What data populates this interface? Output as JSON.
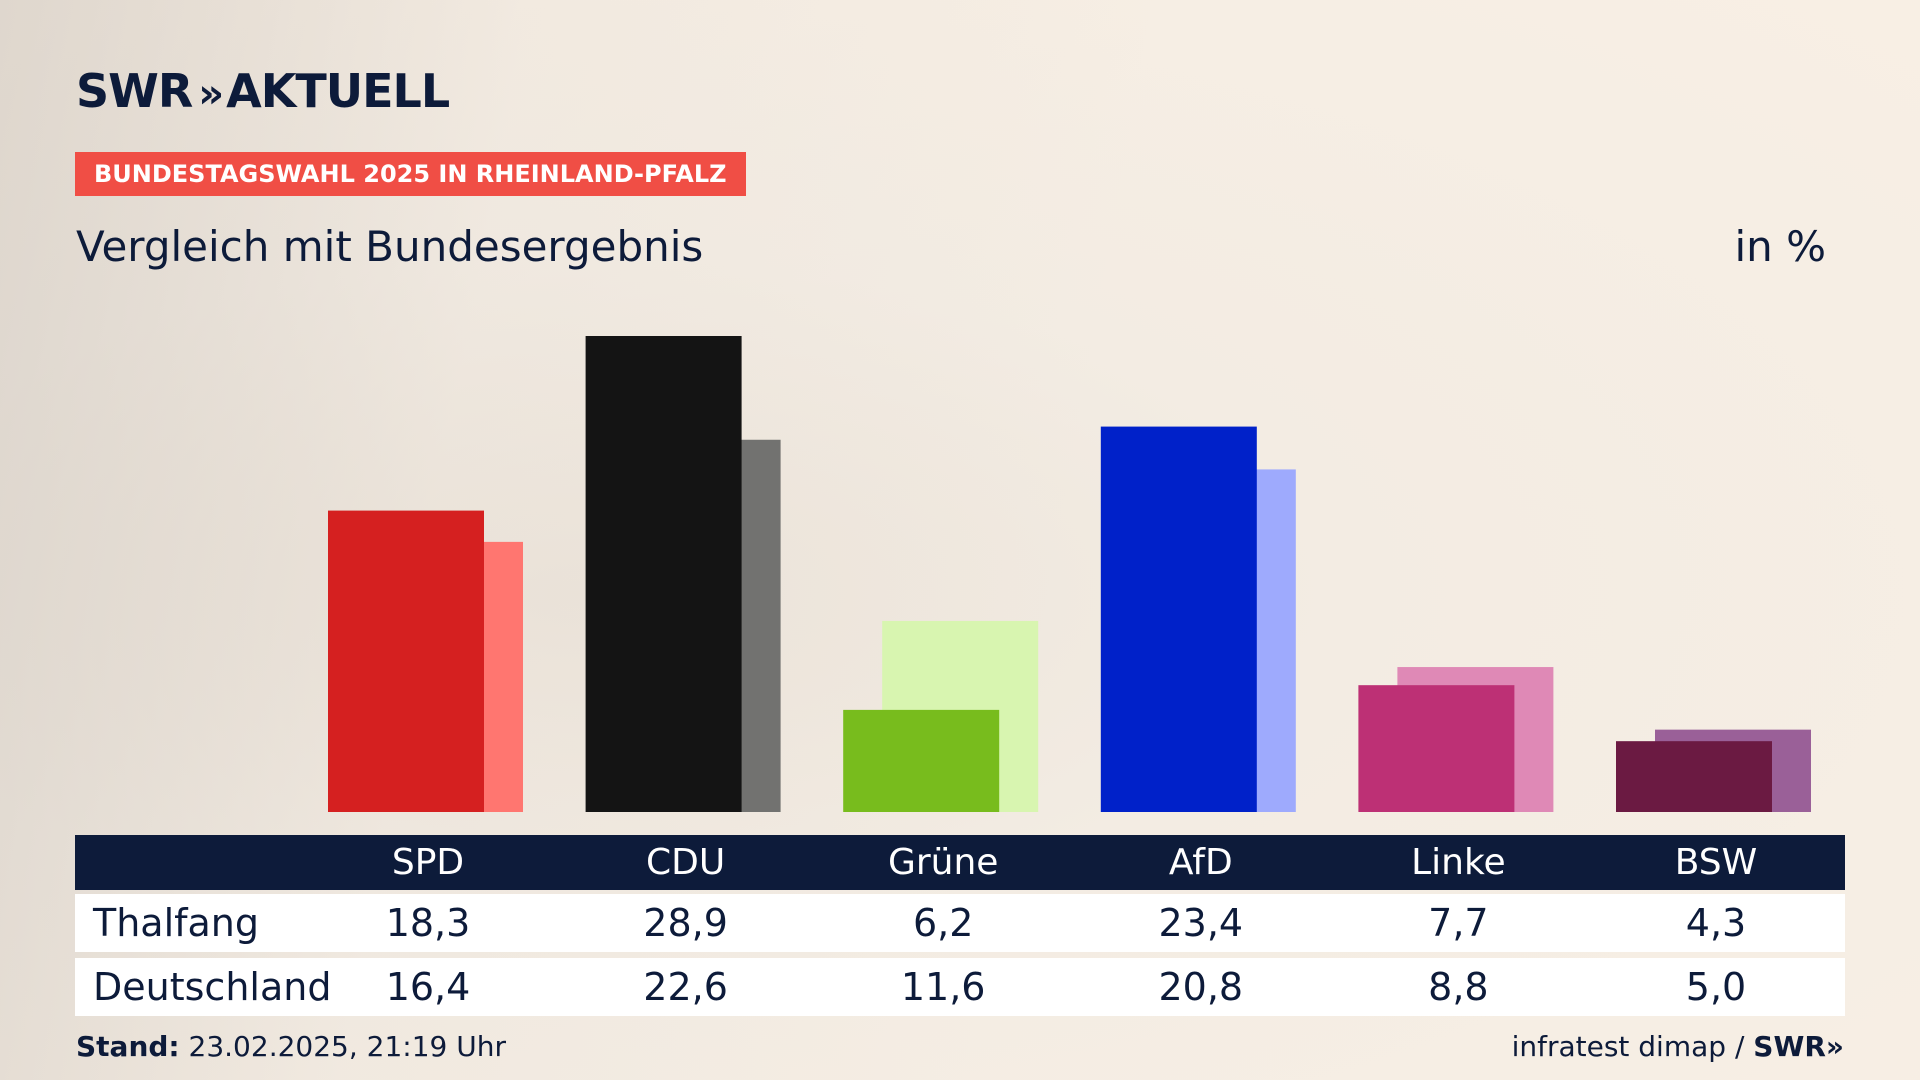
{
  "header": {
    "logo_text": "SWR",
    "logo_chevrons": "»",
    "logo_suffix": "AKTUELL",
    "badge": "BUNDESTAGSWAHL 2025 IN RHEINLAND-PFALZ",
    "subtitle": "Vergleich mit Bundesergebnis",
    "unit": "in %"
  },
  "chart_data": {
    "type": "bar",
    "categories": [
      "SPD",
      "CDU",
      "Grüne",
      "AfD",
      "Linke",
      "BSW"
    ],
    "series": [
      {
        "name": "Thalfang",
        "values": [
          18.3,
          28.9,
          6.2,
          23.4,
          7.7,
          4.3
        ]
      },
      {
        "name": "Deutschland",
        "values": [
          16.4,
          22.6,
          11.6,
          20.8,
          8.8,
          5.0
        ]
      }
    ],
    "display_values": {
      "Thalfang": [
        "18,3",
        "28,9",
        "6,2",
        "23,4",
        "7,7",
        "4,3"
      ],
      "Deutschland": [
        "16,4",
        "22,6",
        "11,6",
        "20,8",
        "8,8",
        "5,0"
      ]
    },
    "colors_primary": [
      "#d52020",
      "#141414",
      "#78bc1d",
      "#0021c9",
      "#bd3075",
      "#6b1a42"
    ],
    "colors_secondary": [
      "#ff7670",
      "#727270",
      "#d8f5b0",
      "#9eaafd",
      "#df89b6",
      "#9a6098"
    ],
    "ylim": [
      0,
      30
    ]
  },
  "footer": {
    "stand_label": "Stand:",
    "stand_value": "23.02.2025, 21:19 Uhr",
    "source": "infratest dimap /",
    "brand": "SWR»"
  }
}
